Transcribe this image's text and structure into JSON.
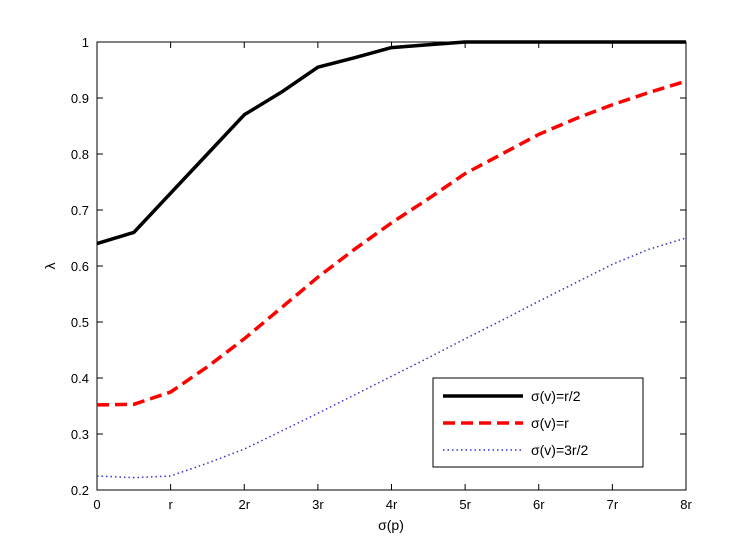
{
  "chart_data": {
    "type": "line",
    "title": "",
    "xlabel": "σ(p)",
    "ylabel": "λ",
    "xlim": [
      0,
      8
    ],
    "ylim": [
      0.2,
      1.0
    ],
    "xticks": [
      0,
      1,
      2,
      3,
      4,
      5,
      6,
      7,
      8
    ],
    "xtick_labels": [
      "0",
      "r",
      "2r",
      "3r",
      "4r",
      "5r",
      "6r",
      "7r",
      "8r"
    ],
    "yticks": [
      0.2,
      0.3,
      0.4,
      0.5,
      0.6,
      0.7,
      0.8,
      0.9,
      1.0
    ],
    "ytick_labels": [
      "0.2",
      "0.3",
      "0.4",
      "0.5",
      "0.6",
      "0.7",
      "0.8",
      "0.9",
      "1"
    ],
    "grid": false,
    "legend_position": "bottom-right",
    "x": [
      0,
      0.5,
      1,
      1.5,
      2,
      2.5,
      3,
      3.5,
      4,
      4.5,
      5,
      5.5,
      6,
      6.5,
      7,
      7.5,
      8
    ],
    "series": [
      {
        "name": "σ(v)=r/2",
        "color": "#000000",
        "style": "solid",
        "values": [
          0.64,
          0.66,
          0.73,
          0.8,
          0.87,
          0.91,
          0.955,
          0.972,
          0.99,
          0.995,
          1.0,
          1.0,
          1.0,
          1.0,
          1.0,
          1.0,
          1.0
        ]
      },
      {
        "name": "σ(v)=r",
        "color": "#ff0000",
        "style": "dashed",
        "values": [
          0.352,
          0.353,
          0.375,
          0.42,
          0.47,
          0.525,
          0.58,
          0.63,
          0.677,
          0.72,
          0.765,
          0.8,
          0.835,
          0.863,
          0.888,
          0.91,
          0.93
        ]
      },
      {
        "name": "σ(v)=3r/2",
        "color": "#3333cc",
        "style": "dotted",
        "values": [
          0.225,
          0.222,
          0.225,
          0.248,
          0.273,
          0.305,
          0.337,
          0.37,
          0.403,
          0.436,
          0.47,
          0.503,
          0.537,
          0.57,
          0.603,
          0.63,
          0.65
        ]
      }
    ]
  }
}
